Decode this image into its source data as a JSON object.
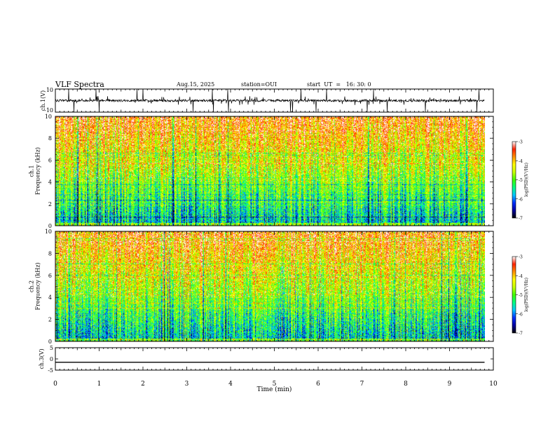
{
  "header": {
    "title": "VLF Spectra",
    "date": "Aug.15, 2025",
    "station": "station=OUI",
    "start_label": "start  UT  =   16: 30: 0"
  },
  "chart_data": [
    {
      "type": "line",
      "panel": "ch1-waveform",
      "ylabel": "ch.1(V)",
      "ylim": [
        -10,
        10
      ],
      "yticks": [
        "10",
        "-10"
      ],
      "x_units": "min",
      "xlim": [
        0,
        10
      ],
      "data_end_min": 9.8,
      "baseline_value": 0,
      "noise_amplitude_V": [
        -4,
        4
      ],
      "color": "#000000"
    },
    {
      "type": "heatmap",
      "panel": "ch1-spectrogram",
      "ylabel": "ch.1\nFrequency (kHz)",
      "ylim": [
        0,
        10
      ],
      "yticks": [
        "0",
        "2",
        "4",
        "6",
        "8",
        "10"
      ],
      "x_units": "min",
      "xlim": [
        0,
        10
      ],
      "data_end_min": 9.8,
      "colorbar": {
        "label": "log(PSD)(V²/Hz)",
        "range": [
          -7,
          -3
        ],
        "ticks": [
          "-3",
          "-4",
          "-5",
          "-6",
          "-7"
        ]
      },
      "description": "background-dominated: red/yellow above ~4 kHz, green/cyan/blue below"
    },
    {
      "type": "heatmap",
      "panel": "ch2-spectrogram",
      "ylabel": "ch.2\nFrequency (kHz)",
      "ylim": [
        0,
        10
      ],
      "yticks": [
        "0",
        "2",
        "4",
        "6",
        "8",
        "10"
      ],
      "x_units": "min",
      "xlim": [
        0,
        10
      ],
      "data_end_min": 9.8,
      "colorbar": {
        "label": "log(PSD)(V²/Hz)",
        "range": [
          -7,
          -3
        ],
        "ticks": [
          "-3",
          "-4",
          "-5",
          "-6",
          "-7"
        ]
      }
    },
    {
      "type": "line",
      "panel": "ch3-waveform",
      "ylabel": "ch.3(V)",
      "ylim": [
        -5,
        5
      ],
      "yticks": [
        "5",
        "0",
        "-5"
      ],
      "x_units": "min",
      "xlim": [
        0,
        10
      ],
      "data_end_min": 9.8,
      "constant_value": -1.5,
      "color": "#000000"
    }
  ],
  "xaxis": {
    "label": "Time (min)",
    "ticks": [
      "0",
      "1",
      "2",
      "3",
      "4",
      "5",
      "6",
      "7",
      "8",
      "9",
      "10"
    ]
  },
  "colormap": [
    "#000000",
    "#0000a0",
    "#0030ff",
    "#00c8ff",
    "#00ff80",
    "#40ff00",
    "#c8ff00",
    "#ffff00",
    "#ff9000",
    "#ff2000",
    "#ffffff"
  ]
}
